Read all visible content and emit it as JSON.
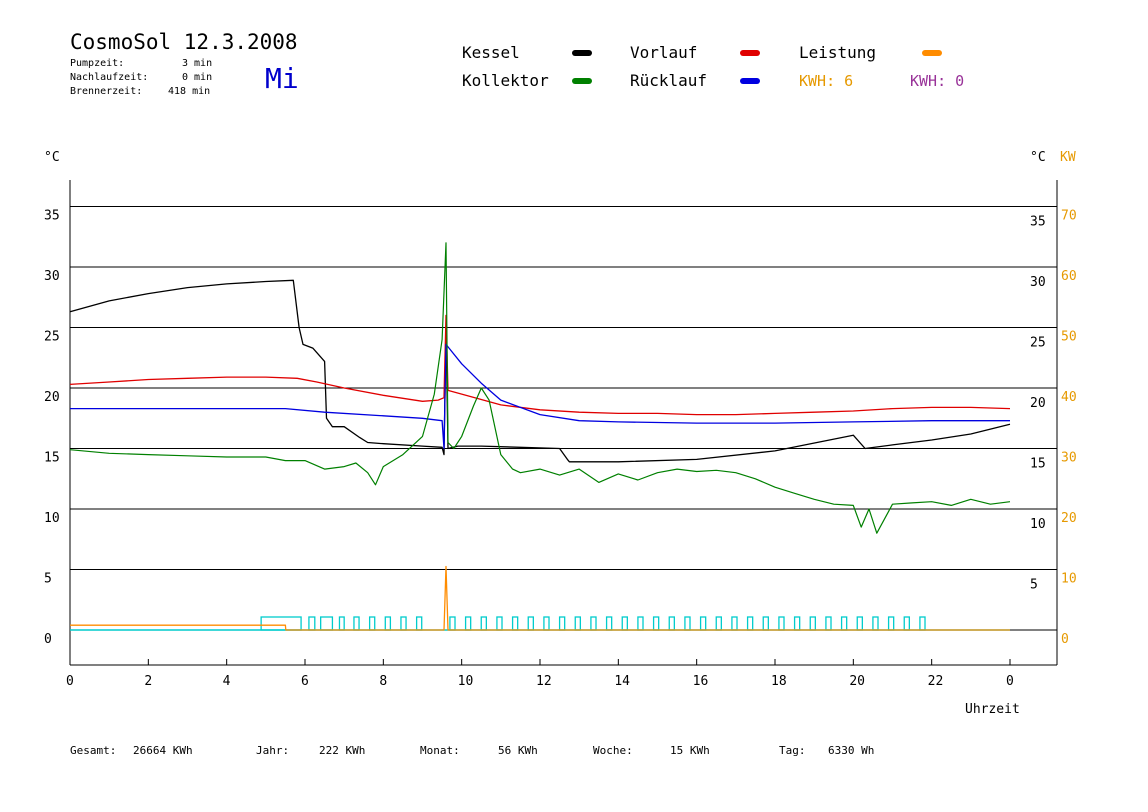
{
  "header": {
    "title": "CosmoSol 12.3.2008",
    "day": "Mi",
    "stats": [
      {
        "label": "Pumpzeit:",
        "value": "3 min"
      },
      {
        "label": "Nachlaufzeit:",
        "value": "0 min"
      },
      {
        "label": "Brennerzeit:",
        "value": "418 min"
      }
    ]
  },
  "legend": {
    "items": [
      {
        "label": "Kessel",
        "color": "#000000"
      },
      {
        "label": "Vorlauf",
        "color": "#e00000"
      },
      {
        "label": "Leistung",
        "color": "#ff8c00"
      },
      {
        "label": "Kollektor",
        "color": "#008000"
      },
      {
        "label": "Rücklauf",
        "color": "#0000e0"
      }
    ],
    "kwh1": "KWH: 6",
    "kwh1_color": "#e69900",
    "kwh2": "KWH: 0",
    "kwh2_color": "#993399"
  },
  "axes": {
    "left_unit": "°C",
    "right_unit": "°C",
    "right_unit2": "KW",
    "xlabel": "Uhrzeit"
  },
  "footer": {
    "items": [
      {
        "label": "Gesamt:",
        "value": "26664 KWh"
      },
      {
        "label": "Jahr:",
        "value": "222 KWh"
      },
      {
        "label": "Monat:",
        "value": "56 KWh"
      },
      {
        "label": "Woche:",
        "value": "15 KWh"
      },
      {
        "label": "Tag:",
        "value": "6330 Wh"
      }
    ]
  },
  "chart_data": {
    "type": "line",
    "title": "CosmoSol 12.3.2008",
    "xlabel": "Uhrzeit",
    "ylabel": "°C",
    "ylabel_right": "KW",
    "xlim": [
      0,
      24
    ],
    "ylim": [
      -2.5,
      37.5
    ],
    "x_ticks": [
      "0",
      "2",
      "4",
      "6",
      "8",
      "10",
      "12",
      "14",
      "16",
      "18",
      "20",
      "22",
      "0"
    ],
    "y_ticks_left": [
      0,
      5,
      10,
      15,
      20,
      25,
      30,
      35
    ],
    "y_ticks_right_temp": [
      5,
      10,
      15,
      20,
      25,
      30,
      35
    ],
    "y_ticks_right_kw": [
      0,
      10,
      20,
      30,
      40,
      50,
      60,
      70
    ],
    "grid": true,
    "series": [
      {
        "name": "Kessel",
        "color": "#000000",
        "x": [
          0,
          1,
          2,
          3,
          4,
          5,
          5.7,
          5.85,
          5.95,
          6.2,
          6.5,
          6.55,
          6.7,
          7.0,
          7.4,
          7.6,
          8.0,
          9.0,
          9.5,
          9.55,
          9.6,
          9.65,
          9.9,
          10.5,
          12.5,
          12.7,
          12.75,
          14,
          16,
          18,
          20,
          20.3,
          21,
          22,
          23,
          24
        ],
        "y": [
          26.3,
          27.2,
          27.8,
          28.3,
          28.6,
          28.8,
          28.9,
          25.0,
          23.6,
          23.3,
          22.2,
          17.5,
          16.8,
          16.8,
          15.9,
          15.5,
          15.4,
          15.2,
          15.1,
          14.5,
          25.0,
          15.0,
          15.2,
          15.2,
          15.0,
          14.1,
          13.9,
          13.9,
          14.1,
          14.8,
          16.1,
          15.0,
          15.3,
          15.7,
          16.2,
          17.0
        ]
      },
      {
        "name": "Vorlauf",
        "color": "#e00000",
        "x": [
          0,
          1,
          2,
          3,
          4,
          5,
          5.8,
          6.3,
          7,
          8,
          9,
          9.4,
          9.55,
          9.6,
          9.65,
          10,
          11,
          12,
          13,
          14,
          15,
          16,
          17,
          18,
          19,
          20,
          21,
          22,
          23,
          24
        ],
        "y": [
          20.3,
          20.5,
          20.7,
          20.8,
          20.9,
          20.9,
          20.8,
          20.5,
          20.0,
          19.4,
          18.9,
          19.0,
          19.2,
          26.0,
          19.8,
          19.5,
          18.6,
          18.2,
          18.0,
          17.9,
          17.9,
          17.8,
          17.8,
          17.9,
          18.0,
          18.1,
          18.3,
          18.4,
          18.4,
          18.3
        ]
      },
      {
        "name": "Rücklauf",
        "color": "#0000e0",
        "x": [
          0,
          2,
          4,
          5.5,
          6.5,
          8,
          9,
          9.5,
          9.55,
          9.6,
          10,
          10.5,
          11,
          12,
          13,
          14,
          16,
          18,
          20,
          22,
          24
        ],
        "y": [
          18.3,
          18.3,
          18.3,
          18.3,
          18.0,
          17.7,
          17.5,
          17.3,
          15.0,
          23.6,
          22.0,
          20.4,
          19.0,
          17.8,
          17.3,
          17.2,
          17.1,
          17.1,
          17.2,
          17.3,
          17.3
        ]
      },
      {
        "name": "Kollektor",
        "color": "#008000",
        "x": [
          0,
          1,
          2,
          3,
          4,
          5,
          5.5,
          6,
          6.5,
          7,
          7.3,
          7.6,
          7.8,
          8.0,
          8.5,
          9.0,
          9.3,
          9.5,
          9.6,
          9.65,
          9.8,
          10.0,
          10.3,
          10.5,
          10.7,
          11.0,
          11.3,
          11.5,
          12.0,
          12.5,
          13.0,
          13.5,
          14.0,
          14.5,
          15.0,
          15.5,
          16.0,
          16.5,
          17.0,
          17.5,
          18.0,
          18.5,
          19.0,
          19.5,
          20.0,
          20.2,
          20.4,
          20.6,
          21.0,
          21.5,
          22.0,
          22.5,
          23.0,
          23.5,
          24.0
        ],
        "y": [
          14.9,
          14.6,
          14.5,
          14.4,
          14.3,
          14.3,
          14.0,
          14.0,
          13.3,
          13.5,
          13.8,
          13.0,
          12.0,
          13.5,
          14.5,
          16.0,
          19.5,
          24.0,
          32.0,
          15.5,
          15.0,
          16.0,
          18.5,
          20.0,
          19.0,
          14.5,
          13.3,
          13.0,
          13.3,
          12.8,
          13.3,
          12.2,
          12.9,
          12.4,
          13.0,
          13.3,
          13.1,
          13.2,
          13.0,
          12.5,
          11.8,
          11.3,
          10.8,
          10.4,
          10.3,
          8.5,
          10.0,
          8.0,
          10.4,
          10.5,
          10.6,
          10.3,
          10.8,
          10.4,
          10.6
        ]
      },
      {
        "name": "Leistung",
        "color": "#ff8c00",
        "unit": "KW",
        "x": [
          0,
          1.5,
          3,
          5.5,
          5.51,
          9.55,
          9.6,
          9.65,
          24
        ],
        "y": [
          0.8,
          0.8,
          0.8,
          0.8,
          0,
          0,
          10.5,
          0,
          0
        ]
      }
    ],
    "pump_pulses": {
      "color": "#00cccc",
      "segments": [
        [
          4.88,
          5.9
        ],
        [
          6.1,
          6.25
        ],
        [
          6.4,
          6.7
        ],
        [
          6.88,
          7.0
        ],
        [
          7.25,
          7.38
        ],
        [
          7.65,
          7.78
        ],
        [
          8.05,
          8.18
        ],
        [
          8.45,
          8.58
        ],
        [
          8.85,
          8.98
        ],
        [
          9.7,
          9.83
        ],
        [
          10.1,
          10.23
        ],
        [
          10.5,
          10.63
        ],
        [
          10.9,
          11.03
        ],
        [
          11.3,
          11.43
        ],
        [
          11.7,
          11.83
        ],
        [
          12.1,
          12.23
        ],
        [
          12.5,
          12.63
        ],
        [
          12.9,
          13.03
        ],
        [
          13.3,
          13.43
        ],
        [
          13.7,
          13.83
        ],
        [
          14.1,
          14.23
        ],
        [
          14.5,
          14.63
        ],
        [
          14.9,
          15.03
        ],
        [
          15.3,
          15.43
        ],
        [
          15.7,
          15.83
        ],
        [
          16.1,
          16.23
        ],
        [
          16.5,
          16.63
        ],
        [
          16.9,
          17.03
        ],
        [
          17.3,
          17.43
        ],
        [
          17.7,
          17.83
        ],
        [
          18.1,
          18.23
        ],
        [
          18.5,
          18.63
        ],
        [
          18.9,
          19.03
        ],
        [
          19.3,
          19.43
        ],
        [
          19.7,
          19.83
        ],
        [
          20.1,
          20.23
        ],
        [
          20.5,
          20.63
        ],
        [
          20.9,
          21.03
        ],
        [
          21.3,
          21.43
        ],
        [
          21.7,
          21.83
        ]
      ]
    }
  }
}
